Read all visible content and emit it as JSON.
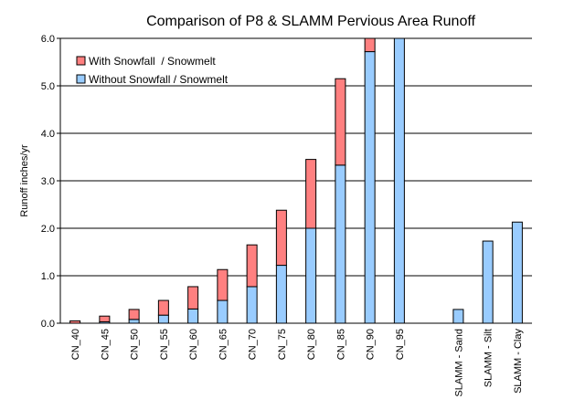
{
  "chart_data": {
    "type": "bar",
    "stacked": true,
    "title": "Comparison of P8 & SLAMM Pervious Area Runoff",
    "xlabel": "",
    "ylabel": "Runoff inches/yr",
    "ylim": [
      0,
      6.0
    ],
    "yticks": [
      "0.0",
      "1.0",
      "2.0",
      "3.0",
      "4.0",
      "5.0",
      "6.0"
    ],
    "grid": true,
    "legend_position": "top-left",
    "categories": [
      "CN_40",
      "CN_45",
      "CN_50",
      "CN_55",
      "CN_60",
      "CN_65",
      "CN_70",
      "CN_75",
      "CN_80",
      "CN_85",
      "CN_90",
      "CN_95",
      "",
      "SLAMM - Sand",
      "SLAMM - Silt",
      "SLAMM - Clay"
    ],
    "series": [
      {
        "name": "Without Snowfall / Snowmelt",
        "color": "#99ccff",
        "values": [
          0.0,
          0.03,
          0.08,
          0.17,
          0.3,
          0.48,
          0.77,
          1.22,
          2.0,
          3.33,
          5.72,
          6.0,
          0,
          0.29,
          1.73,
          2.13
        ]
      },
      {
        "name": "With Snowfall  / Snowmelt",
        "color": "#ff8080",
        "values": [
          0.05,
          0.12,
          0.21,
          0.31,
          0.47,
          0.65,
          0.88,
          1.16,
          1.45,
          1.82,
          0.28,
          0,
          0,
          0,
          0,
          0
        ]
      }
    ]
  }
}
